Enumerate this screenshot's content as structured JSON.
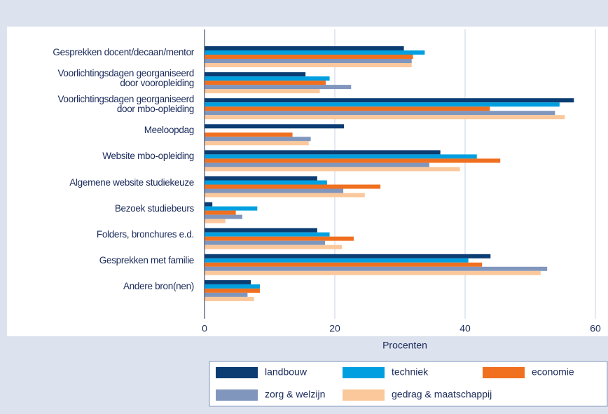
{
  "chart_data": {
    "type": "hbar",
    "categories": [
      "Gesprekken docent/decaan/mentor",
      "Voorlichtingsdagen georganiseerd\ndoor vooropleiding",
      "Voorlichtingsdagen georganiseerd\ndoor mbo-opleiding",
      "Meeloopdag",
      "Website mbo-opleiding",
      "Algemene website studiekeuze",
      "Bezoek studiebeurs",
      "Folders, bronchures e.d.",
      "Gesprekken met familie",
      "Andere bron(nen)"
    ],
    "series": [
      {
        "name": "landbouw",
        "color": "#0b3d73",
        "values": [
          30.6,
          15.5,
          56.7,
          21.4,
          36.2,
          17.3,
          1.2,
          17.3,
          43.9,
          7.1
        ]
      },
      {
        "name": "techniek",
        "color": "#00a0e0",
        "values": [
          33.8,
          19.2,
          54.5,
          0,
          41.8,
          18.8,
          8.1,
          19.2,
          40.5,
          8.5
        ]
      },
      {
        "name": "economie",
        "color": "#f07020",
        "values": [
          32.0,
          18.6,
          43.8,
          13.5,
          45.4,
          27.0,
          4.8,
          22.9,
          42.6,
          8.5
        ]
      },
      {
        "name": "zorg & welzijn",
        "color": "#8096bd",
        "values": [
          31.8,
          22.5,
          53.8,
          16.3,
          34.5,
          21.3,
          5.8,
          18.5,
          52.6,
          6.6
        ]
      },
      {
        "name": "gedrag & maatschappij",
        "color": "#fbc89c",
        "values": [
          31.8,
          17.7,
          55.3,
          16.0,
          39.2,
          24.6,
          3.2,
          21.1,
          51.6,
          7.6
        ]
      }
    ],
    "xlabel": "Procenten",
    "xlim": [
      0,
      61
    ],
    "xticks": [
      0,
      20,
      40,
      60
    ],
    "grid": true
  }
}
